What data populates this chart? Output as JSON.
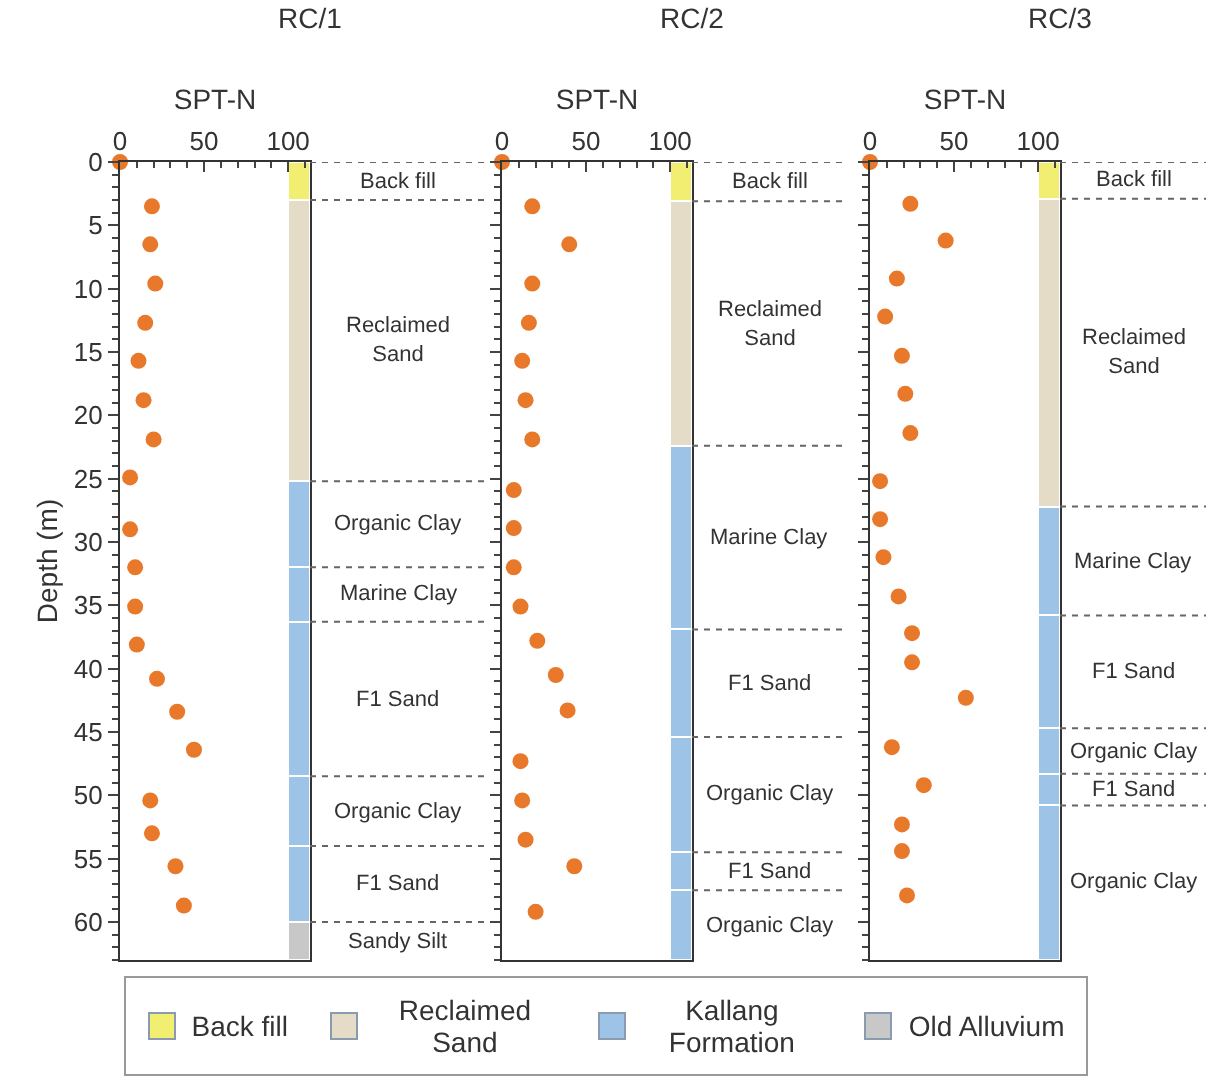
{
  "chart_data": [
    {
      "type": "scatter",
      "title": "RC/1",
      "xlabel": "SPT-N",
      "ylabel": "Depth (m)",
      "marker": "circle",
      "stacked": true,
      "xlim": [
        0,
        113
      ],
      "xticks": [
        0,
        50,
        100
      ],
      "ylim": [
        63,
        0
      ],
      "yticks": [
        0,
        5,
        10,
        15,
        20,
        25,
        30,
        35,
        40,
        45,
        50,
        55,
        60
      ],
      "series": [
        {
          "type": "scatter",
          "color": "#e8782a",
          "x": [
            0,
            19,
            18,
            21,
            15,
            11,
            14,
            20,
            6,
            6,
            9,
            9,
            10,
            22,
            34,
            44,
            18,
            19,
            33,
            38
          ],
          "values": [
            0,
            3.5,
            6.5,
            9.6,
            12.7,
            15.7,
            18.8,
            21.9,
            24.9,
            29,
            32,
            35.1,
            38.1,
            40.8,
            43.4,
            46.4,
            50.4,
            53,
            55.6,
            58.7
          ]
        },
        {
          "type": "bar",
          "name": "Back fill",
          "color": "#f2ee72",
          "x": [
            106.5
          ],
          "values": [
            3
          ]
        },
        {
          "type": "bar",
          "name": "Reclaimed Sand",
          "color": "#e5dcc8",
          "x": [
            106.5
          ],
          "values": [
            22.2
          ]
        },
        {
          "type": "bar",
          "name": "Organic Clay",
          "color": "#9dc3e6",
          "x": [
            106.5
          ],
          "values": [
            6.8
          ]
        },
        {
          "type": "bar",
          "name": "Marine Clay",
          "color": "#9dc3e6",
          "x": [
            106.5
          ],
          "values": [
            4.3
          ]
        },
        {
          "type": "bar",
          "name": "F1 Sand",
          "color": "#9dc3e6",
          "x": [
            106.5
          ],
          "values": [
            12.2
          ]
        },
        {
          "type": "bar",
          "name": "Organic Clay",
          "color": "#9dc3e6",
          "x": [
            106.5
          ],
          "values": [
            5.5
          ]
        },
        {
          "type": "bar",
          "name": "F1 Sand",
          "color": "#9dc3e6",
          "x": [
            106.5
          ],
          "values": [
            6
          ]
        },
        {
          "type": "bar",
          "name": "Sandy Silt",
          "color": "#c8c8c8",
          "x": [
            106.5
          ],
          "values": [
            3
          ]
        }
      ]
    },
    {
      "type": "scatter",
      "title": "RC/2",
      "xlabel": "SPT-N",
      "marker": "circle",
      "stacked": true,
      "tick_labels": "x",
      "xlim": [
        0,
        113
      ],
      "xticks": [
        0,
        50,
        100
      ],
      "ylim": [
        63,
        0
      ],
      "yticks": [
        0,
        5,
        10,
        15,
        20,
        25,
        30,
        35,
        40,
        45,
        50,
        55,
        60
      ],
      "series": [
        {
          "type": "scatter",
          "color": "#e8782a",
          "x": [
            0,
            18,
            40,
            18,
            16,
            12,
            14,
            18,
            7,
            7,
            7,
            11,
            21,
            32,
            39,
            11,
            12,
            14,
            43,
            20
          ],
          "values": [
            0,
            3.5,
            6.5,
            9.6,
            12.7,
            15.7,
            18.8,
            21.9,
            25.9,
            28.9,
            32,
            35.1,
            37.8,
            40.5,
            43.3,
            47.3,
            50.4,
            53.5,
            55.6,
            59.2
          ]
        },
        {
          "type": "bar",
          "name": "Back fill",
          "color": "#f2ee72",
          "x": [
            106.5
          ],
          "values": [
            3.1
          ]
        },
        {
          "type": "bar",
          "name": "Reclaimed Sand",
          "color": "#e5dcc8",
          "x": [
            106.5
          ],
          "values": [
            19.3
          ]
        },
        {
          "type": "bar",
          "name": "Marine Clay",
          "color": "#9dc3e6",
          "x": [
            106.5
          ],
          "values": [
            14.5
          ]
        },
        {
          "type": "bar",
          "name": "F1 Sand",
          "color": "#9dc3e6",
          "x": [
            106.5
          ],
          "values": [
            8.5
          ]
        },
        {
          "type": "bar",
          "name": "Organic Clay",
          "color": "#9dc3e6",
          "x": [
            106.5
          ],
          "values": [
            9.1
          ]
        },
        {
          "type": "bar",
          "name": "F1 Sand",
          "color": "#9dc3e6",
          "x": [
            106.5
          ],
          "values": [
            3
          ]
        },
        {
          "type": "bar",
          "name": "Organic Clay",
          "color": "#9dc3e6",
          "x": [
            106.5
          ],
          "values": [
            5.5
          ]
        }
      ]
    },
    {
      "type": "scatter",
      "title": "RC/3",
      "xlabel": "SPT-N",
      "marker": "circle",
      "stacked": true,
      "tick_labels": "x",
      "xlim": [
        0,
        113
      ],
      "xticks": [
        0,
        50,
        100
      ],
      "ylim": [
        63,
        0
      ],
      "yticks": [
        0,
        5,
        10,
        15,
        20,
        25,
        30,
        35,
        40,
        45,
        50,
        55,
        60
      ],
      "series": [
        {
          "type": "scatter",
          "color": "#e8782a",
          "x": [
            0,
            24,
            45,
            16,
            9,
            19,
            21,
            24,
            6,
            6,
            8,
            17,
            25,
            25,
            57,
            13,
            32,
            19,
            19,
            22
          ],
          "values": [
            0,
            3.3,
            6.2,
            9.2,
            12.2,
            15.3,
            18.3,
            21.4,
            25.2,
            28.2,
            31.2,
            34.3,
            37.2,
            39.5,
            42.3,
            46.2,
            49.2,
            52.3,
            54.4,
            57.9
          ]
        },
        {
          "type": "bar",
          "name": "Back fill",
          "color": "#f2ee72",
          "x": [
            106.5
          ],
          "values": [
            2.9
          ]
        },
        {
          "type": "bar",
          "name": "Reclaimed Sand",
          "color": "#e5dcc8",
          "x": [
            106.5
          ],
          "values": [
            24.3
          ]
        },
        {
          "type": "bar",
          "name": "Marine Clay",
          "color": "#9dc3e6",
          "x": [
            106.5
          ],
          "values": [
            8.6
          ]
        },
        {
          "type": "bar",
          "name": "F1 Sand",
          "color": "#9dc3e6",
          "x": [
            106.5
          ],
          "values": [
            8.9
          ]
        },
        {
          "type": "bar",
          "name": "Organic Clay",
          "color": "#9dc3e6",
          "x": [
            106.5
          ],
          "values": [
            3.6
          ]
        },
        {
          "type": "bar",
          "name": "F1 Sand",
          "color": "#9dc3e6",
          "x": [
            106.5
          ],
          "values": [
            2.5
          ]
        },
        {
          "type": "bar",
          "name": "Organic Clay",
          "color": "#9dc3e6",
          "x": [
            106.5
          ],
          "values": [
            12.2
          ]
        }
      ]
    },
    {
      "type": "other",
      "categories": [
        "Back fill",
        "Reclaimed Sand",
        "Kallang Formation",
        "Old Alluvium"
      ],
      "colors": [
        "#f2ee72",
        "#e5dcc8",
        "#9dc3e6",
        "#c8c8c8"
      ]
    }
  ]
}
